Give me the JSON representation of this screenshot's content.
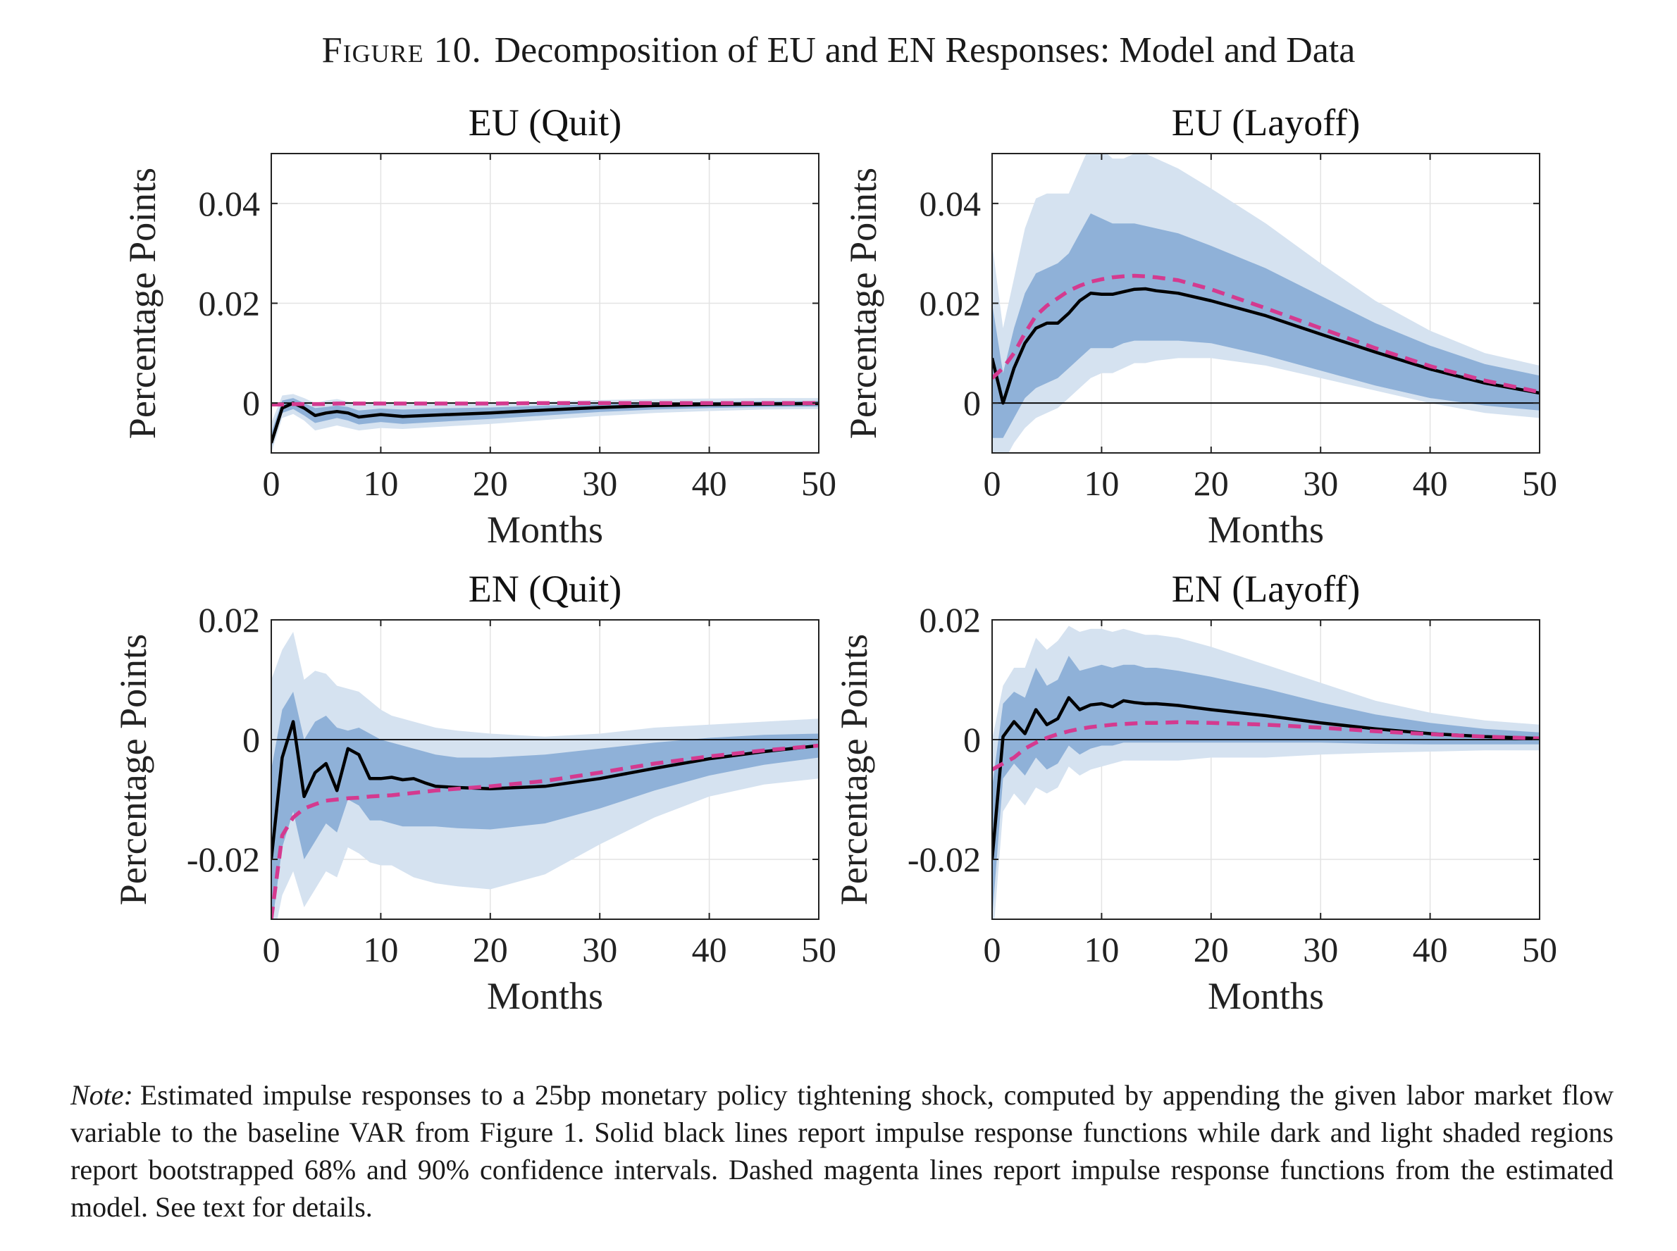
{
  "figure": {
    "label": "Figure 10.",
    "title": "Decomposition of EU and EN Responses: Model and Data"
  },
  "note": {
    "label": "Note:",
    "text": "Estimated impulse responses to a 25bp monetary policy tightening shock, computed by appending the given labor market flow variable to the baseline VAR from Figure 1. Solid black lines report impulse response functions while dark and light shaded regions report bootstrapped 68% and 90% confidence intervals. Dashed magenta lines report impulse response functions from the estimated model. See text for details."
  },
  "colors": {
    "data_line": "#000000",
    "model_line": "#d43a8f",
    "band_68": "#8fb1d8",
    "band_90": "#d5e2f0",
    "grid": "#e3e3e3"
  },
  "chart_data": [
    {
      "type": "line",
      "title": "EU (Quit)",
      "xlabel": "Months",
      "ylabel": "Percentage Points",
      "xlim": [
        0,
        50
      ],
      "ylim": [
        -0.01,
        0.05
      ],
      "xticks": [
        0,
        10,
        20,
        30,
        40,
        50
      ],
      "yticks": [
        0,
        0.02,
        0.04
      ],
      "ytick_labels": [
        "0",
        "0.02",
        "0.04"
      ],
      "grid": true,
      "x": [
        0,
        1,
        2,
        3,
        4,
        5,
        6,
        7,
        8,
        10,
        12,
        15,
        20,
        25,
        30,
        35,
        40,
        45,
        50
      ],
      "data": [
        -0.008,
        -0.001,
        0.0,
        -0.001,
        -0.0025,
        -0.002,
        -0.0017,
        -0.002,
        -0.0028,
        -0.0023,
        -0.0027,
        -0.0024,
        -0.002,
        -0.0014,
        -0.0009,
        -0.0005,
        -0.0003,
        -0.0002,
        -0.0001
      ],
      "model": [
        -0.0003,
        -0.0003,
        -0.0002,
        -0.0002,
        -0.0002,
        -0.0002,
        -0.0001,
        -0.0001,
        -0.0001,
        -0.0001,
        -0.0001,
        -0.0001,
        -0.0001,
        0,
        0,
        0,
        0,
        0,
        0
      ],
      "ci68": {
        "lower": [
          -0.009,
          -0.002,
          -0.0012,
          -0.0025,
          -0.004,
          -0.0035,
          -0.003,
          -0.0035,
          -0.0043,
          -0.0038,
          -0.0042,
          -0.0038,
          -0.0032,
          -0.0025,
          -0.0018,
          -0.0013,
          -0.001,
          -0.0008,
          -0.0007
        ],
        "upper": [
          -0.006,
          0.0005,
          0.001,
          0.0,
          -0.001,
          -0.0008,
          -0.0005,
          -0.0008,
          -0.0015,
          -0.0011,
          -0.0013,
          -0.0011,
          -0.0009,
          -0.0005,
          -0.0002,
          0.0,
          0.0002,
          0.0003,
          0.0004
        ]
      },
      "ci90": {
        "lower": [
          -0.01,
          -0.003,
          -0.0022,
          -0.0035,
          -0.0055,
          -0.005,
          -0.0045,
          -0.005,
          -0.0055,
          -0.005,
          -0.0052,
          -0.0048,
          -0.0042,
          -0.0034,
          -0.0026,
          -0.002,
          -0.0016,
          -0.0013,
          -0.0012
        ],
        "upper": [
          -0.004,
          0.0015,
          0.0018,
          0.001,
          0.0,
          0.0005,
          0.0008,
          0.0003,
          -0.0003,
          0.0,
          -0.0002,
          -0.0001,
          0.0,
          0.0003,
          0.0006,
          0.0008,
          0.0009,
          0.001,
          0.001
        ]
      }
    },
    {
      "type": "line",
      "title": "EU (Layoff)",
      "xlabel": "Months",
      "ylabel": "Percentage Points",
      "xlim": [
        0,
        50
      ],
      "ylim": [
        -0.01,
        0.05
      ],
      "xticks": [
        0,
        10,
        20,
        30,
        40,
        50
      ],
      "yticks": [
        0,
        0.02,
        0.04
      ],
      "ytick_labels": [
        "0",
        "0.02",
        "0.04"
      ],
      "grid": true,
      "x": [
        0,
        1,
        2,
        3,
        4,
        5,
        6,
        7,
        8,
        9,
        10,
        11,
        12,
        13,
        14,
        15,
        17,
        20,
        25,
        30,
        35,
        40,
        45,
        50
      ],
      "data": [
        0.009,
        0.0,
        0.007,
        0.012,
        0.015,
        0.016,
        0.016,
        0.018,
        0.0205,
        0.022,
        0.0218,
        0.0218,
        0.0223,
        0.0228,
        0.0229,
        0.0225,
        0.022,
        0.0205,
        0.0175,
        0.0138,
        0.0102,
        0.0068,
        0.004,
        0.002
      ],
      "model": [
        0.005,
        0.007,
        0.01,
        0.014,
        0.0175,
        0.0195,
        0.021,
        0.0225,
        0.0235,
        0.0243,
        0.0248,
        0.0252,
        0.0254,
        0.0255,
        0.0254,
        0.0252,
        0.0246,
        0.0228,
        0.019,
        0.015,
        0.011,
        0.0074,
        0.0045,
        0.0022
      ],
      "ci68": {
        "lower": [
          -0.007,
          -0.007,
          -0.003,
          0.001,
          0.003,
          0.004,
          0.005,
          0.007,
          0.009,
          0.011,
          0.011,
          0.011,
          0.012,
          0.0125,
          0.0125,
          0.0125,
          0.0125,
          0.012,
          0.0095,
          0.0065,
          0.0035,
          0.001,
          -0.0005,
          -0.0015
        ],
        "upper": [
          0.02,
          0.006,
          0.015,
          0.022,
          0.026,
          0.027,
          0.028,
          0.03,
          0.034,
          0.038,
          0.037,
          0.036,
          0.036,
          0.036,
          0.0355,
          0.035,
          0.034,
          0.0315,
          0.027,
          0.0215,
          0.016,
          0.0115,
          0.0078,
          0.0055
        ]
      },
      "ci90": {
        "lower": [
          -0.012,
          -0.012,
          -0.008,
          -0.005,
          -0.003,
          -0.002,
          -0.001,
          0.001,
          0.003,
          0.005,
          0.006,
          0.006,
          0.007,
          0.008,
          0.008,
          0.0085,
          0.009,
          0.009,
          0.0075,
          0.005,
          0.0025,
          0.0,
          -0.002,
          -0.003
        ],
        "upper": [
          0.032,
          0.015,
          0.025,
          0.035,
          0.041,
          0.042,
          0.042,
          0.042,
          0.047,
          0.052,
          0.051,
          0.049,
          0.049,
          0.05,
          0.05,
          0.049,
          0.047,
          0.043,
          0.036,
          0.028,
          0.0205,
          0.0145,
          0.01,
          0.0075
        ]
      }
    },
    {
      "type": "line",
      "title": "EN (Quit)",
      "xlabel": "Months",
      "ylabel": "Percentage Points",
      "xlim": [
        0,
        50
      ],
      "ylim": [
        -0.03,
        0.02
      ],
      "xticks": [
        0,
        10,
        20,
        30,
        40,
        50
      ],
      "yticks": [
        -0.02,
        0,
        0.02
      ],
      "ytick_labels": [
        "-0.02",
        "0",
        "0.02"
      ],
      "grid": true,
      "x": [
        0,
        1,
        2,
        3,
        4,
        5,
        6,
        7,
        8,
        9,
        10,
        11,
        12,
        13,
        14,
        15,
        17,
        20,
        25,
        30,
        35,
        40,
        45,
        50
      ],
      "data": [
        -0.02,
        -0.003,
        0.003,
        -0.0095,
        -0.0055,
        -0.004,
        -0.0085,
        -0.0015,
        -0.0025,
        -0.0065,
        -0.0065,
        -0.0063,
        -0.0067,
        -0.0065,
        -0.0072,
        -0.0078,
        -0.008,
        -0.0082,
        -0.0078,
        -0.0065,
        -0.0048,
        -0.0032,
        -0.002,
        -0.001
      ],
      "model": [
        -0.03,
        -0.016,
        -0.013,
        -0.0115,
        -0.0108,
        -0.0102,
        -0.01,
        -0.0098,
        -0.0097,
        -0.0095,
        -0.0094,
        -0.0093,
        -0.0091,
        -0.0089,
        -0.0087,
        -0.0085,
        -0.0082,
        -0.0078,
        -0.0069,
        -0.0055,
        -0.004,
        -0.0028,
        -0.0018,
        -0.001
      ],
      "ci68": {
        "lower": [
          -0.032,
          -0.018,
          -0.012,
          -0.02,
          -0.017,
          -0.014,
          -0.0155,
          -0.01,
          -0.011,
          -0.0135,
          -0.0135,
          -0.014,
          -0.0145,
          -0.0145,
          -0.0145,
          -0.0145,
          -0.0148,
          -0.015,
          -0.014,
          -0.0115,
          -0.0085,
          -0.006,
          -0.0042,
          -0.003
        ],
        "upper": [
          -0.005,
          0.005,
          0.008,
          0.0,
          0.003,
          0.004,
          0.002,
          0.0015,
          0.002,
          0.001,
          0.0,
          -0.0005,
          -0.001,
          -0.0015,
          -0.002,
          -0.0025,
          -0.003,
          -0.003,
          -0.0025,
          -0.0015,
          -0.0005,
          0.0003,
          0.0008,
          0.001
        ]
      },
      "ci90": {
        "lower": [
          -0.035,
          -0.026,
          -0.022,
          -0.028,
          -0.025,
          -0.022,
          -0.023,
          -0.018,
          -0.019,
          -0.0205,
          -0.021,
          -0.021,
          -0.022,
          -0.023,
          -0.0235,
          -0.024,
          -0.0245,
          -0.025,
          -0.0225,
          -0.0175,
          -0.013,
          -0.0095,
          -0.0075,
          -0.0065
        ],
        "upper": [
          0.01,
          0.015,
          0.018,
          0.01,
          0.0115,
          0.011,
          0.009,
          0.0085,
          0.008,
          0.0065,
          0.005,
          0.004,
          0.0035,
          0.003,
          0.0025,
          0.002,
          0.0015,
          0.001,
          0.0005,
          0.001,
          0.002,
          0.0025,
          0.003,
          0.0035
        ]
      }
    },
    {
      "type": "line",
      "title": "EN (Layoff)",
      "xlabel": "Months",
      "ylabel": "Percentage Points",
      "xlim": [
        0,
        50
      ],
      "ylim": [
        -0.03,
        0.02
      ],
      "xticks": [
        0,
        10,
        20,
        30,
        40,
        50
      ],
      "yticks": [
        -0.02,
        0,
        0.02
      ],
      "ytick_labels": [
        "-0.02",
        "0",
        "0.02"
      ],
      "grid": true,
      "x": [
        0,
        1,
        2,
        3,
        4,
        5,
        6,
        7,
        8,
        9,
        10,
        11,
        12,
        13,
        14,
        15,
        17,
        20,
        25,
        30,
        35,
        40,
        45,
        50
      ],
      "data": [
        -0.02,
        0.0005,
        0.003,
        0.001,
        0.005,
        0.0025,
        0.0035,
        0.007,
        0.005,
        0.0058,
        0.006,
        0.0055,
        0.0065,
        0.0062,
        0.006,
        0.006,
        0.0057,
        0.005,
        0.004,
        0.0028,
        0.0018,
        0.001,
        0.0005,
        0.0002
      ],
      "model": [
        -0.005,
        -0.004,
        -0.003,
        -0.0015,
        -0.0005,
        0.0003,
        0.0009,
        0.0014,
        0.0018,
        0.0021,
        0.0023,
        0.0025,
        0.0026,
        0.0027,
        0.0028,
        0.0028,
        0.0029,
        0.0028,
        0.0025,
        0.002,
        0.0014,
        0.0009,
        0.0005,
        0.0002
      ],
      "ci68": {
        "lower": [
          -0.03,
          -0.0065,
          -0.004,
          -0.006,
          -0.003,
          -0.005,
          -0.004,
          -0.001,
          -0.0025,
          -0.0015,
          -0.001,
          -0.001,
          -0.0005,
          -0.0005,
          -0.0005,
          -0.0005,
          -0.0005,
          -0.0005,
          -0.0005,
          -0.0005,
          -0.0007,
          -0.0008,
          -0.0008,
          -0.0008
        ],
        "upper": [
          -0.008,
          0.006,
          0.008,
          0.007,
          0.012,
          0.009,
          0.01,
          0.014,
          0.0115,
          0.012,
          0.0125,
          0.012,
          0.0125,
          0.0125,
          0.012,
          0.012,
          0.0115,
          0.0105,
          0.0085,
          0.0062,
          0.0042,
          0.0028,
          0.0018,
          0.0012
        ]
      },
      "ci90": {
        "lower": [
          -0.035,
          -0.012,
          -0.009,
          -0.011,
          -0.008,
          -0.009,
          -0.008,
          -0.0045,
          -0.006,
          -0.005,
          -0.0045,
          -0.004,
          -0.0035,
          -0.0035,
          -0.0035,
          -0.0035,
          -0.0035,
          -0.003,
          -0.003,
          -0.0025,
          -0.0022,
          -0.002,
          -0.0018,
          -0.0018
        ],
        "upper": [
          0.0,
          0.009,
          0.012,
          0.012,
          0.017,
          0.015,
          0.0165,
          0.019,
          0.018,
          0.0185,
          0.0185,
          0.018,
          0.0185,
          0.018,
          0.0175,
          0.0175,
          0.017,
          0.0155,
          0.0125,
          0.0095,
          0.0065,
          0.0045,
          0.0032,
          0.0025
        ]
      }
    }
  ]
}
